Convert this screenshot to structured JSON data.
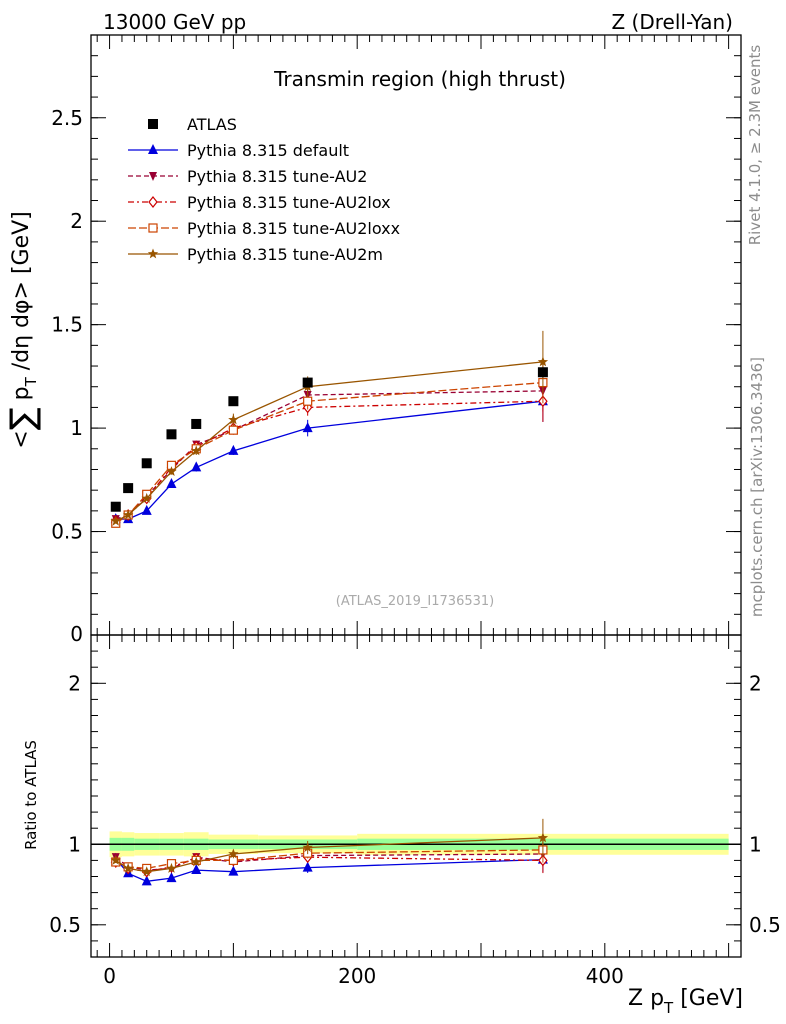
{
  "header": {
    "left": "13000 GeV pp",
    "right": "Z (Drell-Yan)"
  },
  "side": {
    "rivet": "Rivet 4.1.0, ≥ 2.3M events",
    "mcplots": "mcplots.cern.ch [arXiv:1306.3436]"
  },
  "chart_data": {
    "type": "line",
    "title": "Transmin region (high thrust)",
    "analysis_tag": "(ATLAS_2019_I1736531)",
    "xlabel": "Z p_T [GeV]",
    "ylabel": "<∑ p_T /dη dφ> [GeV]",
    "ratio_ylabel": "Ratio to ATLAS",
    "xlim": [
      -15,
      510
    ],
    "ylim": [
      0,
      2.9
    ],
    "ratio_ylim": [
      0.3,
      2.3
    ],
    "x_ticks": [
      0,
      200,
      400
    ],
    "y_ticks": [
      0.5,
      1,
      1.5,
      2,
      2.5
    ],
    "y_tick_labels": [
      "0.5",
      "1",
      "1.5",
      "2",
      "2.5"
    ],
    "ratio_ticks": [
      0.5,
      1,
      2
    ],
    "ratio_tick_labels": [
      "0.5",
      "1",
      "2"
    ],
    "axis_zero_label": "0",
    "x": [
      5,
      15,
      30,
      50,
      70,
      100,
      160,
      350
    ],
    "data_ref": {
      "name": "ATLAS",
      "values": [
        0.62,
        0.71,
        0.83,
        0.97,
        1.02,
        1.13,
        1.22,
        1.27
      ],
      "band_edges": [
        0,
        10,
        20,
        40,
        60,
        80,
        120,
        200,
        500
      ],
      "stat_rel": [
        0.04,
        0.04,
        0.035,
        0.035,
        0.035,
        0.03,
        0.03,
        0.035
      ],
      "total_rel": [
        0.08,
        0.075,
        0.07,
        0.07,
        0.075,
        0.06,
        0.055,
        0.065
      ]
    },
    "series": [
      {
        "name": "Pythia 8.315 default",
        "color": "#0000dd",
        "dash": "",
        "marker": "triangle-up",
        "values": [
          0.56,
          0.56,
          0.6,
          0.73,
          0.81,
          0.89,
          1.0,
          1.13
        ],
        "errors": [
          0.01,
          0.01,
          0.01,
          0.015,
          0.02,
          0.02,
          0.04,
          0.1
        ],
        "ratio": [
          0.91,
          0.82,
          0.77,
          0.79,
          0.84,
          0.83,
          0.855,
          0.905
        ]
      },
      {
        "name": "Pythia 8.315 tune-AU2",
        "color": "#990033",
        "dash": "5,3",
        "marker": "triangle-down",
        "values": [
          0.56,
          0.58,
          0.67,
          0.8,
          0.92,
          0.99,
          1.16,
          1.18
        ],
        "errors": [
          0.01,
          0.01,
          0.01,
          0.015,
          0.02,
          0.02,
          0.04,
          0.1
        ],
        "ratio": [
          0.92,
          0.86,
          0.84,
          0.85,
          0.92,
          0.89,
          0.93,
          0.94
        ]
      },
      {
        "name": "Pythia 8.315 tune-AU2lox",
        "color": "#cc0000",
        "dash": "6,3,2,3",
        "marker": "diamond-open",
        "values": [
          0.55,
          0.58,
          0.66,
          0.81,
          0.91,
          1.0,
          1.1,
          1.13
        ],
        "errors": [
          0.01,
          0.01,
          0.01,
          0.015,
          0.02,
          0.02,
          0.04,
          0.1
        ],
        "ratio": [
          0.89,
          0.85,
          0.83,
          0.86,
          0.91,
          0.9,
          0.92,
          0.9
        ]
      },
      {
        "name": "Pythia 8.315 tune-AU2loxx",
        "color": "#cc4400",
        "dash": "8,3",
        "marker": "square-open",
        "values": [
          0.54,
          0.58,
          0.68,
          0.82,
          0.9,
          0.99,
          1.13,
          1.22
        ],
        "errors": [
          0.01,
          0.01,
          0.01,
          0.015,
          0.02,
          0.02,
          0.04,
          0.1
        ],
        "ratio": [
          0.89,
          0.86,
          0.85,
          0.88,
          0.9,
          0.9,
          0.945,
          0.965
        ]
      },
      {
        "name": "Pythia 8.315 tune-AU2m",
        "color": "#995500",
        "dash": "",
        "marker": "star",
        "values": [
          0.55,
          0.58,
          0.66,
          0.79,
          0.89,
          1.04,
          1.2,
          1.32
        ],
        "errors": [
          0.01,
          0.01,
          0.01,
          0.015,
          0.02,
          0.03,
          0.05,
          0.15
        ],
        "ratio": [
          0.9,
          0.85,
          0.83,
          0.85,
          0.89,
          0.94,
          0.98,
          1.04
        ]
      }
    ]
  }
}
